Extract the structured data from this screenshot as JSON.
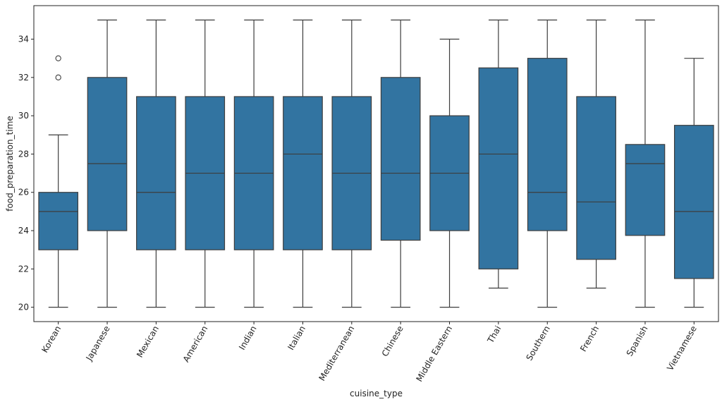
{
  "chart_data": {
    "type": "box",
    "xlabel": "cuisine_type",
    "ylabel": "food_preparation_time",
    "ylim": [
      19.25,
      35.75
    ],
    "yticks": [
      20,
      22,
      24,
      26,
      28,
      30,
      32,
      34
    ],
    "box_color": "#3274a1",
    "line_color": "#3d3d3d",
    "grid": false,
    "categories": [
      "Korean",
      "Japanese",
      "Mexican",
      "American",
      "Indian",
      "Italian",
      "Mediterranean",
      "Chinese",
      "Middle Eastern",
      "Thai",
      "Southern",
      "French",
      "Spanish",
      "Vietnamese"
    ],
    "boxes": [
      {
        "min": 20,
        "q1": 23,
        "median": 25,
        "q3": 26,
        "max": 29,
        "outliers": [
          32,
          33
        ]
      },
      {
        "min": 20,
        "q1": 24,
        "median": 27.5,
        "q3": 32,
        "max": 35,
        "outliers": []
      },
      {
        "min": 20,
        "q1": 23,
        "median": 26,
        "q3": 31,
        "max": 35,
        "outliers": []
      },
      {
        "min": 20,
        "q1": 23,
        "median": 27,
        "q3": 31,
        "max": 35,
        "outliers": []
      },
      {
        "min": 20,
        "q1": 23,
        "median": 27,
        "q3": 31,
        "max": 35,
        "outliers": []
      },
      {
        "min": 20,
        "q1": 23,
        "median": 28,
        "q3": 31,
        "max": 35,
        "outliers": []
      },
      {
        "min": 20,
        "q1": 23,
        "median": 27,
        "q3": 31,
        "max": 35,
        "outliers": []
      },
      {
        "min": 20,
        "q1": 23.5,
        "median": 27,
        "q3": 32,
        "max": 35,
        "outliers": []
      },
      {
        "min": 20,
        "q1": 24,
        "median": 27,
        "q3": 30,
        "max": 34,
        "outliers": []
      },
      {
        "min": 21,
        "q1": 22,
        "median": 28,
        "q3": 32.5,
        "max": 35,
        "outliers": []
      },
      {
        "min": 20,
        "q1": 24,
        "median": 26,
        "q3": 33,
        "max": 35,
        "outliers": []
      },
      {
        "min": 21,
        "q1": 22.5,
        "median": 25.5,
        "q3": 31,
        "max": 35,
        "outliers": []
      },
      {
        "min": 20,
        "q1": 23.75,
        "median": 27.5,
        "q3": 28.5,
        "max": 35,
        "outliers": []
      },
      {
        "min": 20,
        "q1": 21.5,
        "median": 25,
        "q3": 29.5,
        "max": 33,
        "outliers": []
      }
    ]
  }
}
